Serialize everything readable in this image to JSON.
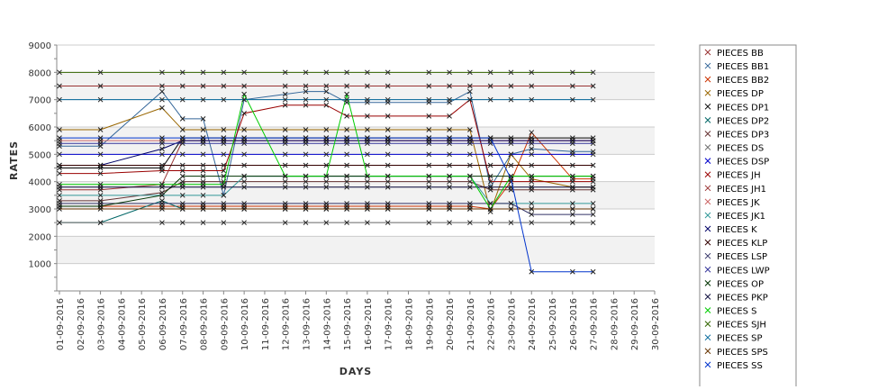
{
  "chart_data": {
    "type": "line",
    "xlabel": "DAYS",
    "ylabel": "RATES",
    "ylim": [
      0,
      9000
    ],
    "yticks": [
      1000,
      2000,
      3000,
      4000,
      5000,
      6000,
      7000,
      8000,
      9000
    ],
    "ytick_labels": [
      "1000",
      "2000",
      "3000",
      "4000",
      "5000",
      "6000",
      "7000",
      "8000",
      "9000"
    ],
    "categories": [
      "01-09-2016",
      "02-09-2016",
      "03-09-2016",
      "04-09-2016",
      "05-09-2016",
      "06-09-2016",
      "07-09-2016",
      "08-09-2016",
      "09-09-2016",
      "10-09-2016",
      "11-09-2016",
      "12-09-2016",
      "13-09-2016",
      "14-09-2016",
      "15-09-2016",
      "16-09-2016",
      "17-09-2016",
      "18-09-2016",
      "19-09-2016",
      "20-09-2016",
      "21-09-2016",
      "22-09-2016",
      "23-09-2016",
      "24-09-2016",
      "25-09-2016",
      "26-09-2016",
      "27-09-2016",
      "28-09-2016",
      "29-09-2016",
      "30-09-2016"
    ],
    "grid": true,
    "band_color": "#f2f2f2",
    "legend_position": "right",
    "marker": "x",
    "series": [
      {
        "name": "PIECES BB",
        "color": "#993333",
        "values": [
          7500,
          null,
          7500,
          null,
          null,
          7500,
          7500,
          7500,
          7500,
          7500,
          null,
          7500,
          7500,
          7500,
          7500,
          7500,
          7500,
          null,
          7500,
          7500,
          7500,
          7500,
          7500,
          7500,
          null,
          7500,
          7500,
          null,
          null,
          null
        ]
      },
      {
        "name": "PIECES BB1",
        "color": "#336699",
        "values": [
          5300,
          null,
          5300,
          null,
          null,
          7300,
          6300,
          6300,
          3500,
          7000,
          null,
          7200,
          7300,
          7300,
          6900,
          6900,
          6900,
          null,
          6900,
          6900,
          7300,
          3800,
          5000,
          5200,
          null,
          5100,
          5100,
          null,
          null,
          null
        ]
      },
      {
        "name": "PIECES BB2",
        "color": "#cc3300",
        "values": [
          3100,
          null,
          3100,
          null,
          null,
          3100,
          3100,
          3100,
          3100,
          3100,
          null,
          3100,
          3100,
          3100,
          3100,
          3100,
          3100,
          null,
          3100,
          3100,
          3100,
          3000,
          4000,
          5800,
          null,
          4100,
          4100,
          null,
          null,
          null
        ]
      },
      {
        "name": "PIECES DP",
        "color": "#996600",
        "values": [
          5900,
          null,
          5900,
          null,
          null,
          6700,
          5900,
          5900,
          5900,
          5900,
          null,
          5900,
          5900,
          5900,
          5900,
          5900,
          5900,
          null,
          5900,
          5900,
          5900,
          2900,
          5000,
          4100,
          null,
          3800,
          3800,
          null,
          null,
          null
        ]
      },
      {
        "name": "PIECES DP1",
        "color": "#000000",
        "values": [
          4500,
          null,
          4500,
          null,
          null,
          4500,
          5600,
          5600,
          5600,
          5600,
          null,
          5600,
          5600,
          5600,
          5600,
          5600,
          5600,
          null,
          5600,
          5600,
          5600,
          5600,
          5600,
          5600,
          null,
          5600,
          5600,
          null,
          null,
          null
        ]
      },
      {
        "name": "PIECES DP2",
        "color": "#006666",
        "values": [
          2500,
          null,
          2500,
          null,
          null,
          3300,
          3000,
          3000,
          3000,
          3000,
          null,
          3000,
          3000,
          3000,
          3000,
          3000,
          3000,
          null,
          3000,
          3000,
          3000,
          3000,
          3000,
          3000,
          null,
          3000,
          3000,
          null,
          null,
          null
        ]
      },
      {
        "name": "PIECES DP3",
        "color": "#663333",
        "values": [
          3300,
          null,
          3300,
          null,
          null,
          3600,
          4000,
          4000,
          4000,
          4000,
          null,
          4000,
          4000,
          4000,
          4000,
          4000,
          4000,
          null,
          4000,
          4000,
          4000,
          3700,
          3700,
          3700,
          null,
          3700,
          3700,
          null,
          null,
          null
        ]
      },
      {
        "name": "PIECES DS",
        "color": "#666666",
        "values": [
          2500,
          null,
          2500,
          null,
          null,
          2500,
          2500,
          2500,
          2500,
          2500,
          null,
          2500,
          2500,
          2500,
          2500,
          2500,
          2500,
          null,
          2500,
          2500,
          2500,
          2500,
          2500,
          2500,
          null,
          2500,
          2500,
          null,
          null,
          null
        ]
      },
      {
        "name": "PIECES DSP",
        "color": "#0000cc",
        "values": [
          5000,
          null,
          5000,
          null,
          null,
          5000,
          5000,
          5000,
          5000,
          5000,
          null,
          5000,
          5000,
          5000,
          5000,
          5000,
          5000,
          null,
          5000,
          5000,
          5000,
          5000,
          5000,
          5000,
          null,
          5000,
          5000,
          null,
          null,
          null
        ]
      },
      {
        "name": "PIECES JH",
        "color": "#990000",
        "values": [
          4300,
          null,
          4300,
          null,
          null,
          4400,
          4400,
          4400,
          4400,
          6500,
          null,
          6800,
          6800,
          6800,
          6400,
          6400,
          6400,
          null,
          6400,
          6400,
          7000,
          4000,
          4000,
          4000,
          null,
          4000,
          4000,
          null,
          null,
          null
        ]
      },
      {
        "name": "PIECES JH1",
        "color": "#993333",
        "values": [
          3700,
          null,
          3700,
          null,
          null,
          3900,
          5500,
          5500,
          5500,
          5500,
          null,
          5500,
          5500,
          5500,
          5500,
          5500,
          5500,
          null,
          5500,
          5500,
          5500,
          5500,
          5500,
          5500,
          null,
          5500,
          5500,
          null,
          null,
          null
        ]
      },
      {
        "name": "PIECES JK",
        "color": "#cc6666",
        "values": [
          5500,
          null,
          5500,
          null,
          null,
          5500,
          5500,
          5500,
          5500,
          5500,
          null,
          5500,
          5500,
          5500,
          5500,
          5500,
          5500,
          null,
          5500,
          5500,
          5500,
          5500,
          5500,
          5500,
          null,
          5500,
          5500,
          null,
          null,
          null
        ]
      },
      {
        "name": "PIECES JK1",
        "color": "#339999",
        "values": [
          3500,
          null,
          3500,
          null,
          null,
          3500,
          3500,
          3500,
          3500,
          4200,
          null,
          4200,
          4200,
          4200,
          4200,
          4200,
          4200,
          null,
          4200,
          4200,
          4200,
          3200,
          3200,
          3200,
          null,
          3200,
          3200,
          null,
          null,
          null
        ]
      },
      {
        "name": "PIECES K",
        "color": "#000066",
        "values": [
          4600,
          null,
          4600,
          null,
          null,
          5200,
          5500,
          5500,
          5500,
          5500,
          null,
          5500,
          5500,
          5500,
          5500,
          5500,
          5500,
          null,
          5500,
          5500,
          5500,
          5500,
          5500,
          5500,
          null,
          5500,
          5500,
          null,
          null,
          null
        ]
      },
      {
        "name": "PIECES KLP",
        "color": "#330000",
        "values": [
          4600,
          null,
          4600,
          null,
          null,
          4600,
          4600,
          4600,
          4600,
          4600,
          null,
          4600,
          4600,
          4600,
          4600,
          4600,
          4600,
          null,
          4600,
          4600,
          4600,
          4600,
          4600,
          4600,
          null,
          4600,
          4600,
          null,
          null,
          null
        ]
      },
      {
        "name": "PIECES LSP",
        "color": "#333366",
        "values": [
          3200,
          null,
          3200,
          null,
          null,
          3200,
          3200,
          3200,
          3200,
          3200,
          null,
          3200,
          3200,
          3200,
          3200,
          3200,
          3200,
          null,
          3200,
          3200,
          3200,
          3200,
          3200,
          2800,
          null,
          2800,
          2800,
          null,
          null,
          null
        ]
      },
      {
        "name": "PIECES LWP",
        "color": "#333399",
        "values": [
          5400,
          null,
          5400,
          null,
          null,
          5400,
          5400,
          5400,
          5400,
          5400,
          null,
          5400,
          5400,
          5400,
          5400,
          5400,
          5400,
          null,
          5400,
          5400,
          5400,
          5400,
          5400,
          5400,
          null,
          5400,
          5400,
          null,
          null,
          null
        ]
      },
      {
        "name": "PIECES OP",
        "color": "#003300",
        "values": [
          3100,
          null,
          3100,
          null,
          null,
          3500,
          4200,
          4200,
          4200,
          4200,
          null,
          4200,
          4200,
          4200,
          4200,
          4200,
          4200,
          null,
          4200,
          4200,
          4200,
          4200,
          4200,
          4200,
          null,
          4200,
          4200,
          null,
          null,
          null
        ]
      },
      {
        "name": "PIECES PKP",
        "color": "#000033",
        "values": [
          3800,
          null,
          3800,
          null,
          null,
          3800,
          3800,
          3800,
          3800,
          3800,
          null,
          3800,
          3800,
          3800,
          3800,
          3800,
          3800,
          null,
          3800,
          3800,
          3800,
          3800,
          3800,
          3800,
          null,
          3800,
          3800,
          null,
          null,
          null
        ]
      },
      {
        "name": "PIECES S",
        "color": "#00cc00",
        "values": [
          3900,
          null,
          3900,
          null,
          null,
          3900,
          3900,
          3900,
          3900,
          7200,
          null,
          4200,
          4200,
          4200,
          7200,
          4200,
          4200,
          null,
          4200,
          4200,
          4200,
          3000,
          4200,
          4200,
          null,
          4200,
          4200,
          null,
          null,
          null
        ]
      },
      {
        "name": "PIECES SJH",
        "color": "#336600",
        "values": [
          8000,
          null,
          8000,
          null,
          null,
          8000,
          8000,
          8000,
          8000,
          8000,
          null,
          8000,
          8000,
          8000,
          8000,
          8000,
          8000,
          null,
          8000,
          8000,
          8000,
          8000,
          8000,
          8000,
          null,
          8000,
          8000,
          null,
          null,
          null
        ]
      },
      {
        "name": "PIECES SP",
        "color": "#006699",
        "values": [
          7000,
          null,
          7000,
          null,
          null,
          7000,
          7000,
          7000,
          7000,
          7000,
          null,
          7000,
          7000,
          7000,
          7000,
          7000,
          7000,
          null,
          7000,
          7000,
          7000,
          7000,
          7000,
          7000,
          null,
          7000,
          7000,
          null,
          null,
          null
        ]
      },
      {
        "name": "PIECES SPS",
        "color": "#663300",
        "values": [
          3000,
          null,
          3000,
          null,
          null,
          3000,
          3000,
          3000,
          3000,
          3000,
          null,
          3000,
          3000,
          3000,
          3000,
          3000,
          3000,
          null,
          3000,
          3000,
          3000,
          3000,
          3000,
          3000,
          null,
          3000,
          3000,
          null,
          null,
          null
        ]
      },
      {
        "name": "PIECES SS",
        "color": "#0033cc",
        "values": [
          5600,
          null,
          5600,
          null,
          null,
          5600,
          5600,
          5600,
          5600,
          5600,
          null,
          5600,
          5600,
          5600,
          5600,
          5600,
          5600,
          null,
          5600,
          5600,
          5600,
          5600,
          4100,
          700,
          null,
          700,
          700,
          null,
          null,
          null
        ]
      }
    ]
  }
}
